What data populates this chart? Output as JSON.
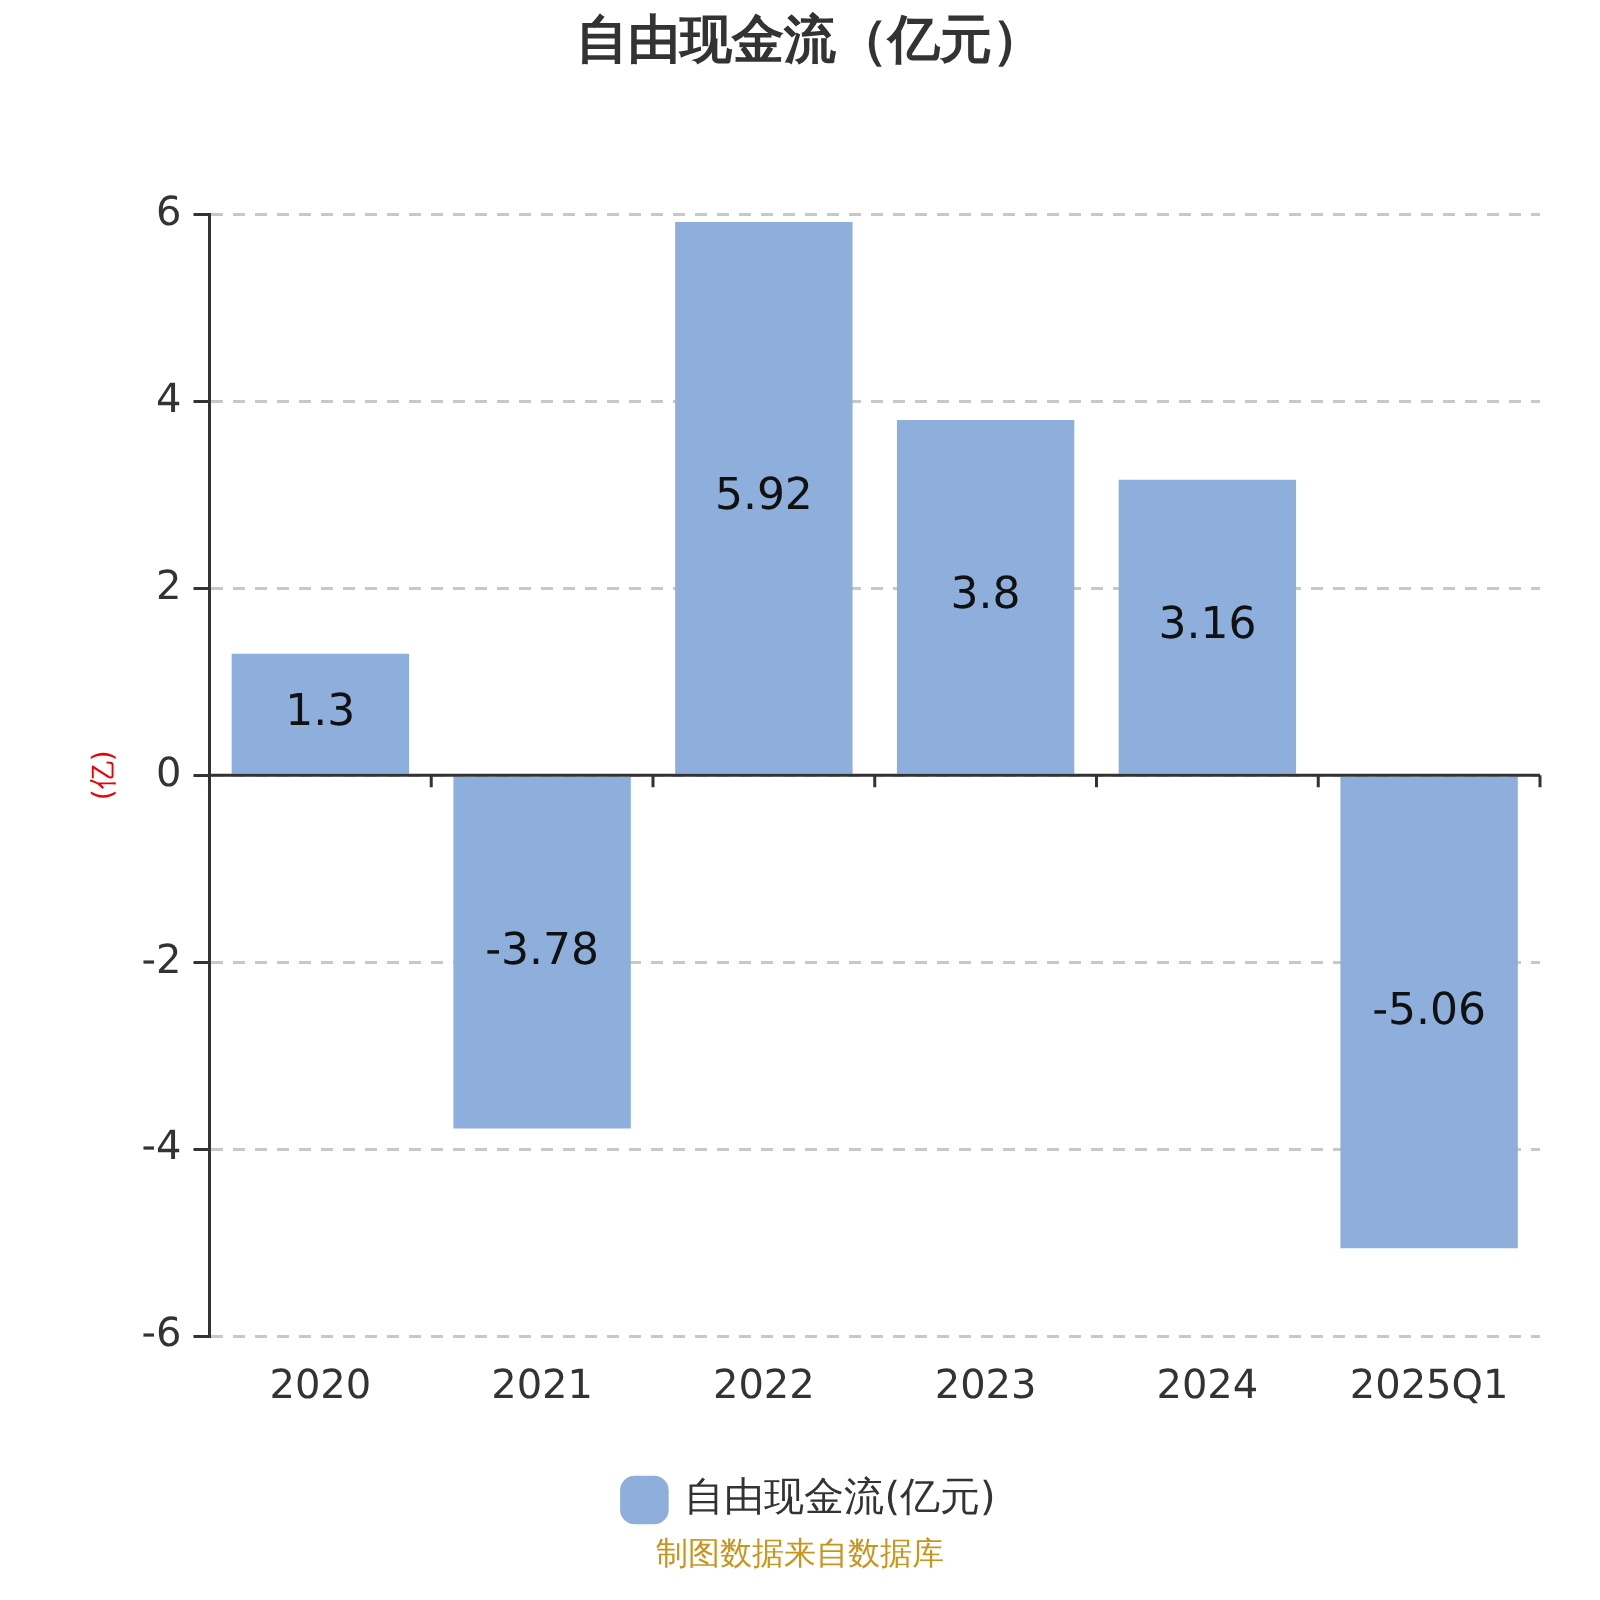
{
  "chart_data": {
    "type": "bar",
    "title": "自由现金流（亿元）",
    "ylabel": "(亿)",
    "categories": [
      "2020",
      "2021",
      "2022",
      "2023",
      "2024",
      "2025Q1"
    ],
    "series": [
      {
        "name": "自由现金流(亿元)",
        "color": "#8eaedb",
        "values": [
          1.3,
          -3.78,
          5.92,
          3.8,
          3.16,
          -5.06
        ]
      }
    ],
    "ylim": [
      -6,
      6
    ],
    "yticks": [
      -6,
      -4,
      -2,
      0,
      2,
      4,
      6
    ],
    "grid": "y",
    "legend": "bottom",
    "data_labels": true,
    "annotations": [
      "制图数据来自数据库"
    ]
  }
}
